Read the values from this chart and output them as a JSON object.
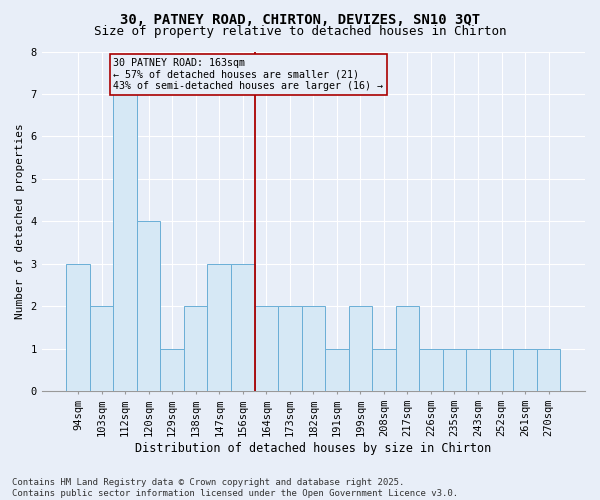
{
  "title": "30, PATNEY ROAD, CHIRTON, DEVIZES, SN10 3QT",
  "subtitle": "Size of property relative to detached houses in Chirton",
  "xlabel": "Distribution of detached houses by size in Chirton",
  "ylabel": "Number of detached properties",
  "categories": [
    "94sqm",
    "103sqm",
    "112sqm",
    "120sqm",
    "129sqm",
    "138sqm",
    "147sqm",
    "156sqm",
    "164sqm",
    "173sqm",
    "182sqm",
    "191sqm",
    "199sqm",
    "208sqm",
    "217sqm",
    "226sqm",
    "235sqm",
    "243sqm",
    "252sqm",
    "261sqm",
    "270sqm"
  ],
  "values": [
    3,
    2,
    7,
    4,
    1,
    2,
    3,
    3,
    2,
    2,
    2,
    1,
    2,
    1,
    2,
    1,
    1,
    1,
    1,
    1,
    1
  ],
  "bar_color": "#d6e8f5",
  "bar_edgecolor": "#6aaed6",
  "reference_line_index": 8,
  "reference_line_color": "#aa0000",
  "annotation_text": "30 PATNEY ROAD: 163sqm\n← 57% of detached houses are smaller (21)\n43% of semi-detached houses are larger (16) →",
  "annotation_box_edgecolor": "#aa0000",
  "ylim": [
    0,
    8
  ],
  "yticks": [
    0,
    1,
    2,
    3,
    4,
    5,
    6,
    7,
    8
  ],
  "background_color": "#e8eef8",
  "footer_text": "Contains HM Land Registry data © Crown copyright and database right 2025.\nContains public sector information licensed under the Open Government Licence v3.0.",
  "title_fontsize": 10,
  "subtitle_fontsize": 9,
  "xlabel_fontsize": 8.5,
  "ylabel_fontsize": 8,
  "tick_fontsize": 7.5,
  "footer_fontsize": 6.5
}
